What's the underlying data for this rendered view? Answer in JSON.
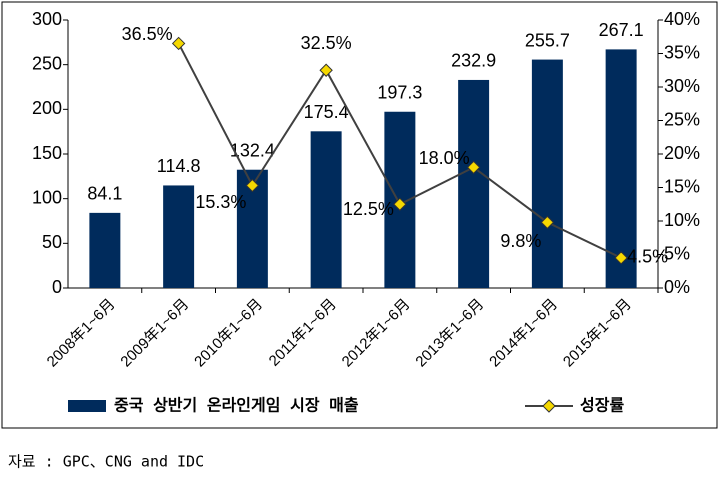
{
  "chart_data": {
    "type": "bar+line",
    "categories": [
      "2008年1~6月",
      "2009年1~6月",
      "2010年1~6月",
      "2011年1~6月",
      "2012年1~6月",
      "2013年1~6月",
      "2014年1~6月",
      "2015年1~6月"
    ],
    "series": [
      {
        "name": "중국 상반기 온라인게임 시장 매출",
        "type": "bar",
        "color": "#002b5c",
        "values": [
          84.1,
          114.8,
          132.4,
          175.4,
          197.3,
          232.9,
          255.7,
          267.1
        ]
      },
      {
        "name": "성장률",
        "type": "line",
        "axis": "y2",
        "color": "#404040",
        "marker_color": "#f5d800",
        "values": [
          null,
          36.5,
          15.3,
          32.5,
          12.5,
          18.0,
          9.8,
          4.5
        ],
        "value_labels": [
          null,
          "36.5%",
          "15.3%",
          "32.5%",
          "12.5%",
          "18.0%",
          "9.8%",
          "4.5%"
        ]
      }
    ],
    "ylim": [
      0,
      300
    ],
    "yticks": [
      0,
      50,
      100,
      150,
      200,
      250,
      300
    ],
    "y2lim": [
      0,
      40
    ],
    "y2ticks": [
      {
        "value": 0,
        "label": "0%"
      },
      {
        "value": 5,
        "label": "5%"
      },
      {
        "value": 10,
        "label": "10%"
      },
      {
        "value": 15,
        "label": "15%"
      },
      {
        "value": 20,
        "label": "20%"
      },
      {
        "value": 25,
        "label": "25%"
      },
      {
        "value": 30,
        "label": "30%"
      },
      {
        "value": 35,
        "label": "35%"
      },
      {
        "value": 40,
        "label": "40%"
      }
    ],
    "legend": "bottom",
    "source": "자료 : GPC、CNG and IDC"
  }
}
